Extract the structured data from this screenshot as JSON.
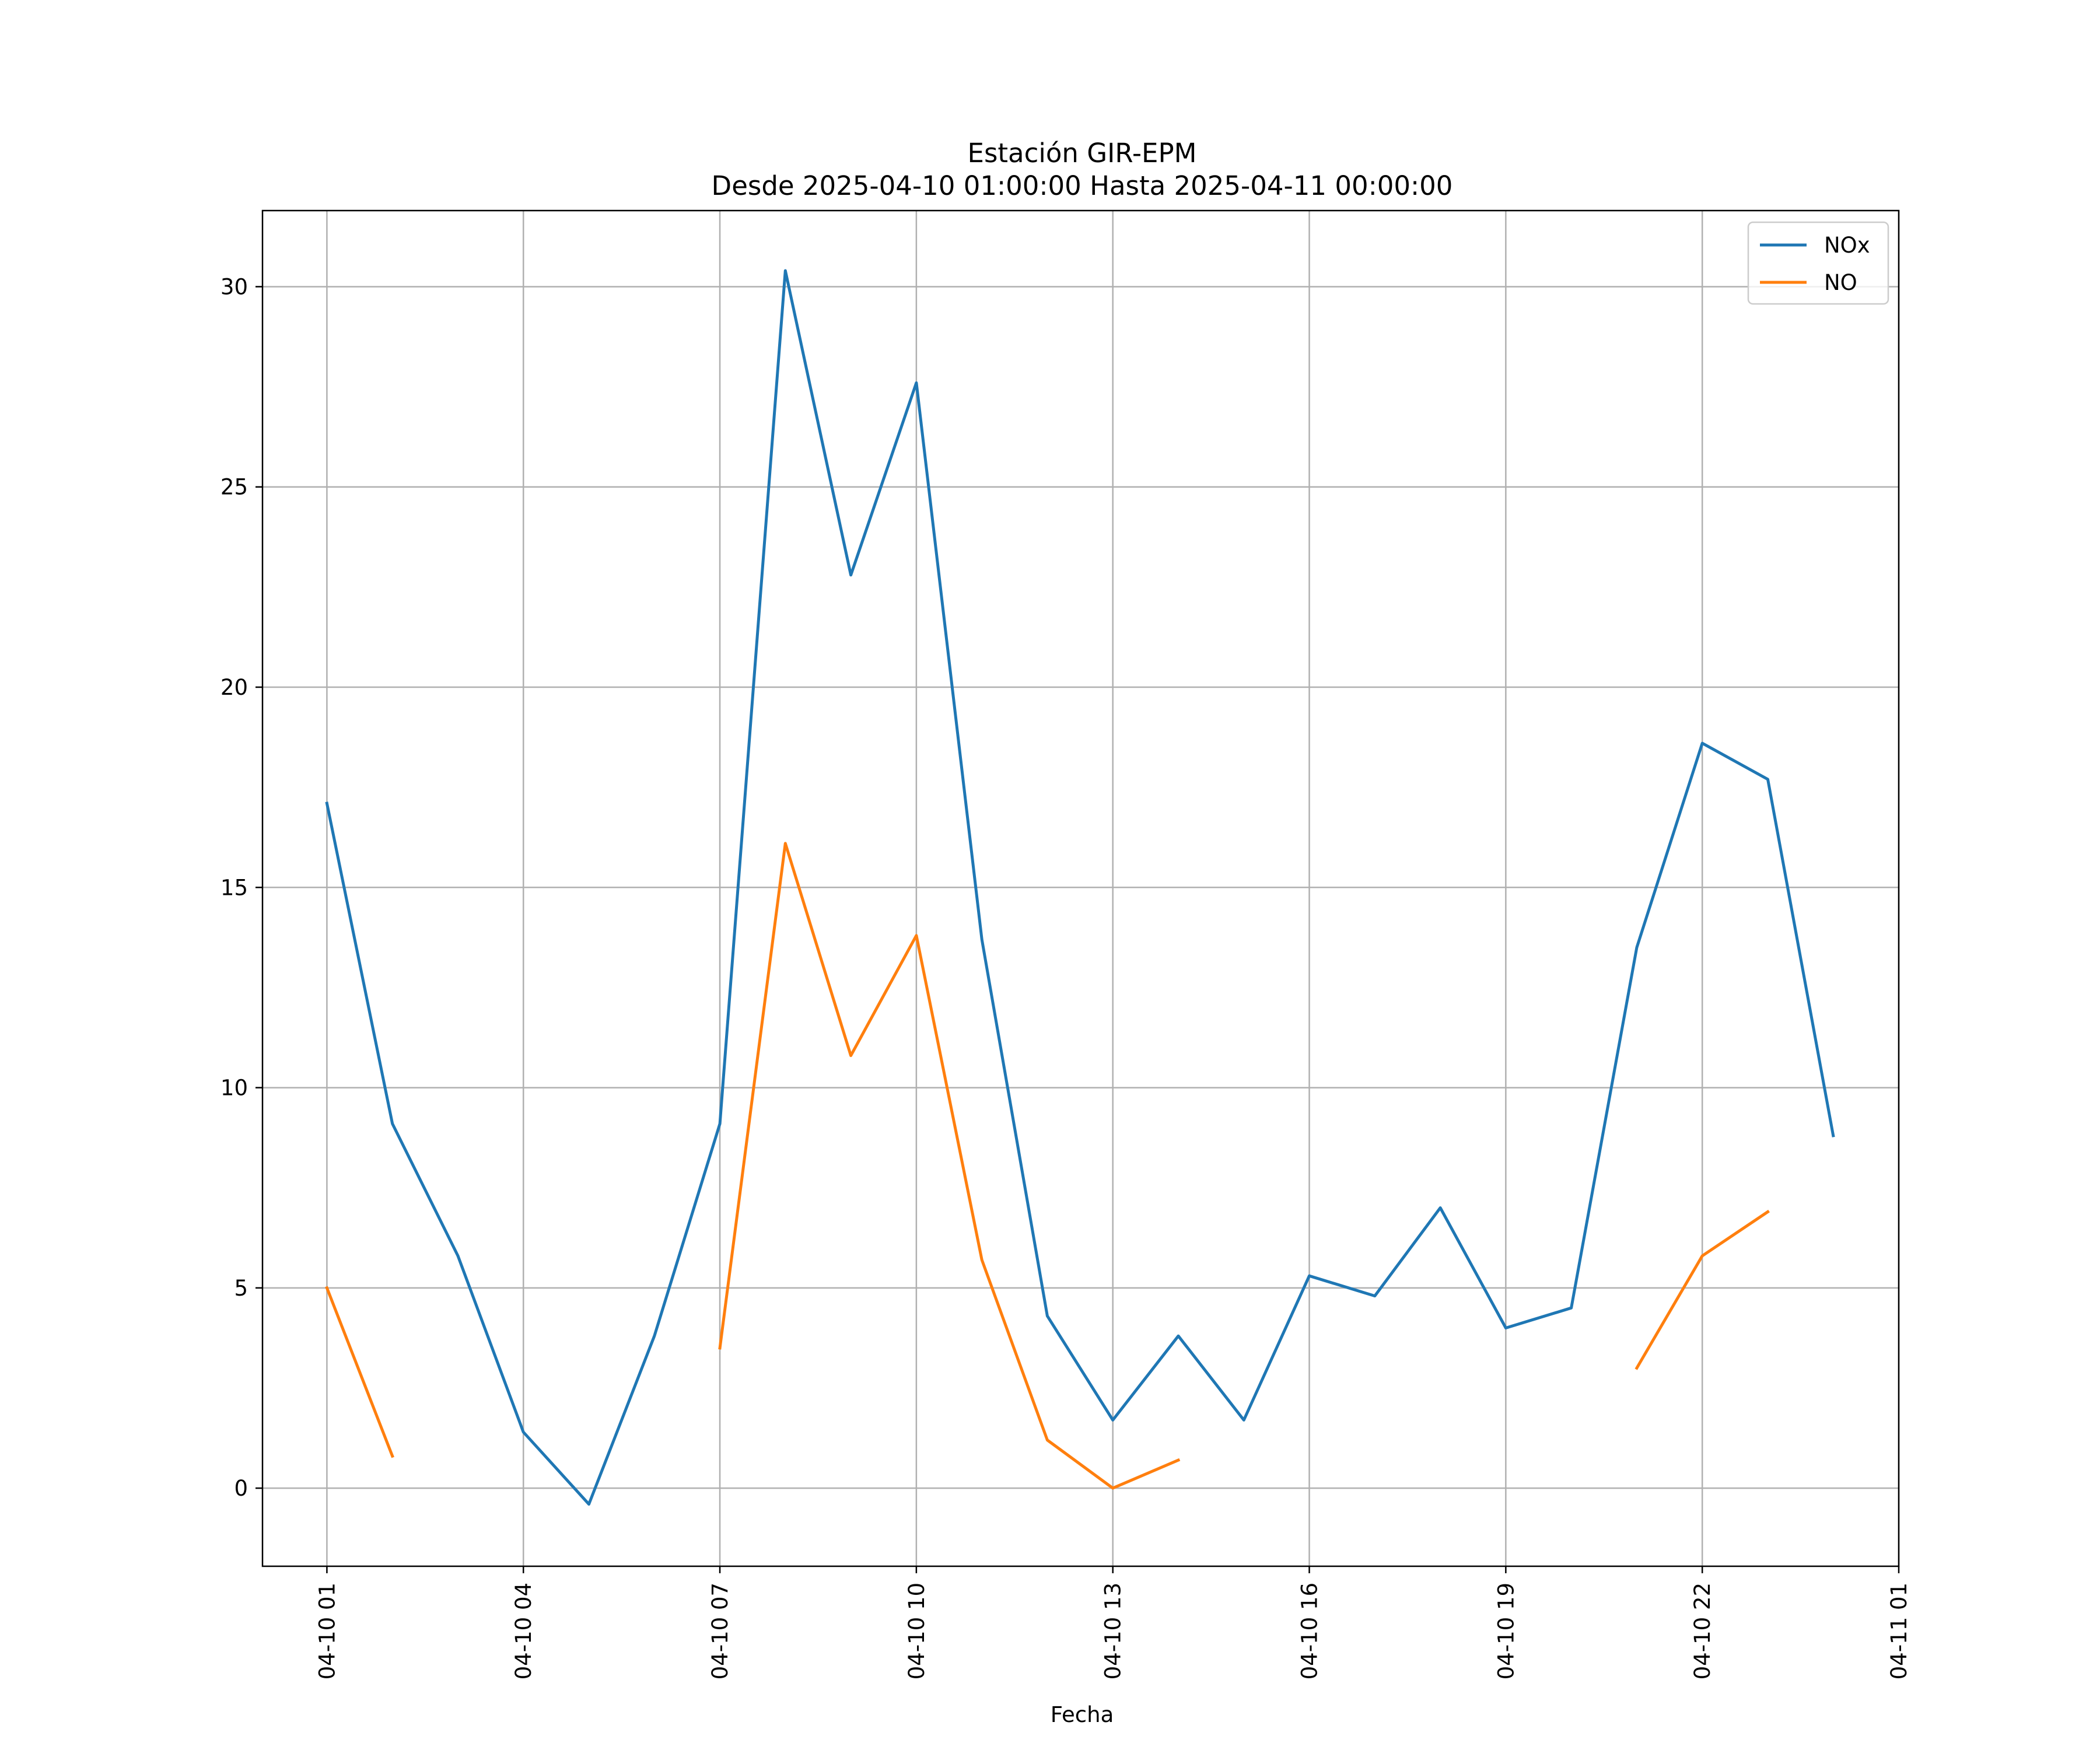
{
  "chart_data": {
    "type": "line",
    "title": "Estación GIR-EPM",
    "subtitle": "Desde 2025-04-10 01:00:00 Hasta 2025-04-11 00:00:00",
    "xlabel": "Fecha",
    "ylabel": "",
    "x": [
      "2025-04-10 01:00",
      "2025-04-10 02:00",
      "2025-04-10 03:00",
      "2025-04-10 04:00",
      "2025-04-10 05:00",
      "2025-04-10 06:00",
      "2025-04-10 07:00",
      "2025-04-10 08:00",
      "2025-04-10 09:00",
      "2025-04-10 10:00",
      "2025-04-10 11:00",
      "2025-04-10 12:00",
      "2025-04-10 13:00",
      "2025-04-10 14:00",
      "2025-04-10 15:00",
      "2025-04-10 16:00",
      "2025-04-10 17:00",
      "2025-04-10 18:00",
      "2025-04-10 19:00",
      "2025-04-10 20:00",
      "2025-04-10 21:00",
      "2025-04-10 22:00",
      "2025-04-10 23:00",
      "2025-04-11 00:00"
    ],
    "x_ticks": [
      "04-10 01",
      "04-10 04",
      "04-10 07",
      "04-10 10",
      "04-10 13",
      "04-10 16",
      "04-10 19",
      "04-10 22",
      "04-11 01"
    ],
    "x_tick_values": [
      "2025-04-10 01:00",
      "2025-04-10 04:00",
      "2025-04-10 07:00",
      "2025-04-10 10:00",
      "2025-04-10 13:00",
      "2025-04-10 16:00",
      "2025-04-10 19:00",
      "2025-04-10 22:00",
      "2025-04-11 01:00"
    ],
    "xlim": [
      "2025-04-10 00:01",
      "2025-04-11 01:00"
    ],
    "y_ticks": [
      0,
      5,
      10,
      15,
      20,
      25,
      30
    ],
    "ylim": [
      -1.95,
      31.9
    ],
    "grid": true,
    "legend_position": "top-right",
    "series": [
      {
        "name": "NOx",
        "color": "#1f77b4",
        "values": [
          17.1,
          9.1,
          5.8,
          1.4,
          -0.4,
          3.8,
          9.1,
          30.4,
          22.8,
          27.6,
          13.7,
          4.3,
          1.7,
          3.8,
          1.7,
          5.3,
          4.8,
          7.0,
          4.0,
          4.5,
          13.5,
          18.6,
          17.7,
          8.8
        ]
      },
      {
        "name": "NO",
        "color": "#ff7f0e",
        "values": [
          5.0,
          0.8,
          null,
          null,
          null,
          null,
          3.5,
          16.1,
          10.8,
          13.8,
          5.7,
          1.2,
          0.0,
          0.7,
          null,
          null,
          null,
          null,
          null,
          null,
          3.0,
          5.8,
          6.9,
          null
        ]
      }
    ]
  }
}
